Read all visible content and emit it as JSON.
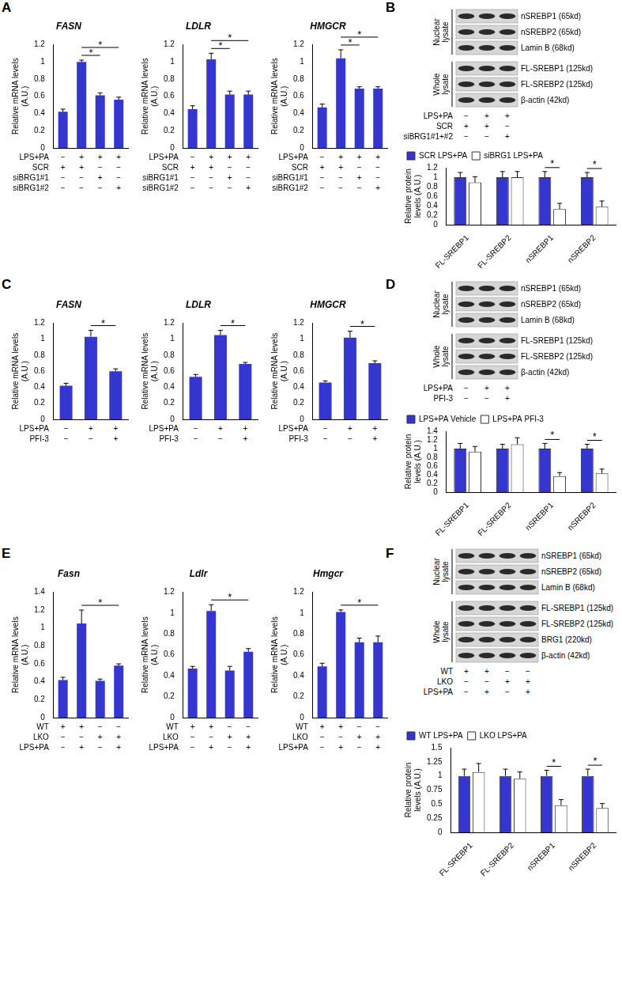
{
  "chart_data": [
    {
      "panel": "A",
      "type": "bar",
      "title": "FASN",
      "y_label": [
        "Relative mRNA levels",
        "(A.U.)"
      ],
      "categories": [
        null,
        null,
        null,
        null
      ],
      "values": [
        0.42,
        1.0,
        0.61,
        0.56
      ],
      "errors": [
        0.03,
        0.02,
        0.03,
        0.03
      ],
      "color": "#3535d0",
      "ylim": [
        0,
        1.2
      ],
      "yticks": [
        0,
        0.2,
        0.4,
        0.6,
        0.8,
        1,
        1.2
      ],
      "grid": false,
      "conditions": [
        {
          "name": "LPS+PA",
          "signs": [
            "−",
            "+",
            "+",
            "+"
          ]
        },
        {
          "name": "SCR",
          "signs": [
            "+",
            "+",
            "−",
            "−"
          ]
        },
        {
          "name": "siBRG1#1",
          "signs": [
            "−",
            "−",
            "+",
            "−"
          ]
        },
        {
          "name": "siBRG1#2",
          "signs": [
            "−",
            "−",
            "−",
            "+"
          ]
        }
      ],
      "significance": [
        {
          "from": 1,
          "to": 2,
          "label": "*"
        },
        {
          "from": 1,
          "to": 3,
          "label": "*"
        }
      ]
    },
    {
      "panel": "A",
      "type": "bar",
      "title": "LDLR",
      "y_label": [
        "Relative mRNA levels",
        "(A.U.)"
      ],
      "categories": [
        null,
        null,
        null,
        null
      ],
      "values": [
        0.45,
        1.03,
        0.62,
        0.62
      ],
      "errors": [
        0.04,
        0.07,
        0.04,
        0.04
      ],
      "color": "#3535d0",
      "ylim": [
        0,
        1.2
      ],
      "yticks": [
        0,
        0.2,
        0.4,
        0.6,
        0.8,
        1,
        1.2
      ],
      "grid": false,
      "conditions": [
        {
          "name": "LPS+PA",
          "signs": [
            "−",
            "+",
            "+",
            "+"
          ]
        },
        {
          "name": "SCR",
          "signs": [
            "+",
            "+",
            "−",
            "−"
          ]
        },
        {
          "name": "siBRG1#1",
          "signs": [
            "−",
            "−",
            "+",
            "−"
          ]
        },
        {
          "name": "siBRG1#2",
          "signs": [
            "−",
            "−",
            "−",
            "+"
          ]
        }
      ],
      "significance": [
        {
          "from": 1,
          "to": 2,
          "label": "*"
        },
        {
          "from": 1,
          "to": 3,
          "label": "*"
        }
      ]
    },
    {
      "panel": "A",
      "type": "bar",
      "title": "HMGCR",
      "y_label": [
        "Relative mRNA levels",
        "(A.U.)"
      ],
      "categories": [
        null,
        null,
        null,
        null
      ],
      "values": [
        0.47,
        1.04,
        0.69,
        0.69
      ],
      "errors": [
        0.04,
        0.1,
        0.02,
        0.02
      ],
      "color": "#3535d0",
      "ylim": [
        0,
        1.2
      ],
      "yticks": [
        0,
        0.2,
        0.4,
        0.6,
        0.8,
        1,
        1.2
      ],
      "grid": false,
      "conditions": [
        {
          "name": "LPS+PA",
          "signs": [
            "−",
            "+",
            "+",
            "+"
          ]
        },
        {
          "name": "SCR",
          "signs": [
            "+",
            "+",
            "−",
            "−"
          ]
        },
        {
          "name": "siBRG1#1",
          "signs": [
            "−",
            "−",
            "+",
            "−"
          ]
        },
        {
          "name": "siBRG1#2",
          "signs": [
            "−",
            "−",
            "−",
            "+"
          ]
        }
      ],
      "significance": [
        {
          "from": 1,
          "to": 2,
          "label": "*"
        },
        {
          "from": 1,
          "to": 3,
          "label": "*"
        }
      ]
    },
    {
      "panel": "B",
      "type": "bar",
      "y_label": [
        "Relative protein",
        "levels (A.U.)"
      ],
      "categories": [
        "FL-SREBP1",
        "FL-SREBP2",
        "nSREBP1",
        "nSREBP2"
      ],
      "series": [
        {
          "name": "SCR LPS+PA",
          "color": "#3535d0",
          "values": [
            1,
            1,
            1,
            1
          ],
          "errors": [
            0.1,
            0.12,
            0.12,
            0.1
          ]
        },
        {
          "name": "siBRG1 LPS+PA",
          "color": "#ffffff",
          "values": [
            0.89,
            1.0,
            0.33,
            0.38
          ],
          "errors": [
            0.12,
            0.12,
            0.12,
            0.12
          ]
        }
      ],
      "ylim": [
        0,
        1.2
      ],
      "yticks": [
        0,
        0.2,
        0.4,
        0.6,
        0.8,
        1,
        1.2
      ],
      "grid": false,
      "legend": "top-left",
      "significance": [
        {
          "category": 2,
          "label": "*"
        },
        {
          "category": 3,
          "label": "*"
        }
      ]
    },
    {
      "panel": "C",
      "type": "bar",
      "title": "FASN",
      "y_label": [
        "Relative mRNA levels",
        "(A.U.)"
      ],
      "categories": [
        null,
        null,
        null
      ],
      "values": [
        0.42,
        1.03,
        0.6
      ],
      "errors": [
        0.03,
        0.08,
        0.03
      ],
      "color": "#3535d0",
      "ylim": [
        0,
        1.2
      ],
      "yticks": [
        0,
        0.2,
        0.4,
        0.6,
        0.8,
        1,
        1.2
      ],
      "grid": false,
      "conditions": [
        {
          "name": "LPS+PA",
          "signs": [
            "−",
            "+",
            "+"
          ]
        },
        {
          "name": "PFI-3",
          "signs": [
            "−",
            "−",
            "+"
          ]
        }
      ],
      "significance": [
        {
          "from": 1,
          "to": 2,
          "label": "*"
        }
      ]
    },
    {
      "panel": "C",
      "type": "bar",
      "title": "LDLR",
      "y_label": [
        "Relative mRNA levels",
        "(A.U.)"
      ],
      "categories": [
        null,
        null,
        null
      ],
      "values": [
        0.53,
        1.05,
        0.69
      ],
      "errors": [
        0.03,
        0.06,
        0.02
      ],
      "color": "#3535d0",
      "ylim": [
        0,
        1.2
      ],
      "yticks": [
        0,
        0.2,
        0.4,
        0.6,
        0.8,
        1,
        1.2
      ],
      "grid": false,
      "conditions": [
        {
          "name": "LPS+PA",
          "signs": [
            "−",
            "+",
            "+"
          ]
        },
        {
          "name": "PFI-3",
          "signs": [
            "−",
            "−",
            "+"
          ]
        }
      ],
      "significance": [
        {
          "from": 1,
          "to": 2,
          "label": "*"
        }
      ]
    },
    {
      "panel": "C",
      "type": "bar",
      "title": "HMGCR",
      "y_label": [
        "Relative mRNA levels",
        "(A.U.)"
      ],
      "categories": [
        null,
        null,
        null
      ],
      "values": [
        0.46,
        1.02,
        0.7
      ],
      "errors": [
        0.02,
        0.08,
        0.03
      ],
      "color": "#3535d0",
      "ylim": [
        0,
        1.2
      ],
      "yticks": [
        0,
        0.2,
        0.4,
        0.6,
        0.8,
        1,
        1.2
      ],
      "grid": false,
      "conditions": [
        {
          "name": "LPS+PA",
          "signs": [
            "−",
            "+",
            "+"
          ]
        },
        {
          "name": "PFI-3",
          "signs": [
            "−",
            "−",
            "+"
          ]
        }
      ],
      "significance": [
        {
          "from": 1,
          "to": 2,
          "label": "*"
        }
      ]
    },
    {
      "panel": "D",
      "type": "bar",
      "y_label": [
        "Relative protein",
        "levels (A.U.)"
      ],
      "categories": [
        "FL-SREBP1",
        "FL-SREBP2",
        "nSREBP1",
        "nSREBP2"
      ],
      "series": [
        {
          "name": "LPS+PA Vehicle",
          "color": "#3535d0",
          "values": [
            1,
            1,
            1,
            1
          ],
          "errors": [
            0.12,
            0.1,
            0.12,
            0.1
          ]
        },
        {
          "name": "LPS+PA PFI-3",
          "color": "#ffffff",
          "values": [
            0.93,
            1.1,
            0.37,
            0.43
          ],
          "errors": [
            0.12,
            0.15,
            0.08,
            0.1
          ]
        }
      ],
      "ylim": [
        0,
        1.4
      ],
      "yticks": [
        0,
        0.2,
        0.4,
        0.6,
        0.8,
        1,
        1.2,
        1.4
      ],
      "grid": false,
      "legend": "top-left",
      "significance": [
        {
          "category": 2,
          "label": "*"
        },
        {
          "category": 3,
          "label": "*"
        }
      ]
    },
    {
      "panel": "E",
      "type": "bar",
      "title": "Fasn",
      "y_label": [
        "Relative mRNA levels",
        "(A.U.)"
      ],
      "categories": [
        null,
        null,
        null,
        null
      ],
      "values": [
        0.42,
        1.05,
        0.41,
        0.58
      ],
      "errors": [
        0.03,
        0.15,
        0.02,
        0.02
      ],
      "color": "#3535d0",
      "ylim": [
        0,
        1.4
      ],
      "yticks": [
        0,
        0.2,
        0.4,
        0.6,
        0.8,
        1,
        1.2,
        1.4
      ],
      "grid": false,
      "conditions": [
        {
          "name": "WT",
          "signs": [
            "+",
            "+",
            "−",
            "−"
          ]
        },
        {
          "name": "LKO",
          "signs": [
            "−",
            "−",
            "+",
            "+"
          ]
        },
        {
          "name": "LPS+PA",
          "signs": [
            "−",
            "+",
            "−",
            "+"
          ]
        }
      ],
      "significance": [
        {
          "from": 1,
          "to": 3,
          "label": "*"
        }
      ]
    },
    {
      "panel": "E",
      "type": "bar",
      "title": "Ldlr",
      "y_label": [
        "Relative mRNA levels",
        "(A.U.)"
      ],
      "categories": [
        null,
        null,
        null,
        null
      ],
      "values": [
        0.47,
        1.02,
        0.45,
        0.63
      ],
      "errors": [
        0.02,
        0.06,
        0.04,
        0.03
      ],
      "color": "#3535d0",
      "ylim": [
        0,
        1.2
      ],
      "yticks": [
        0,
        0.2,
        0.4,
        0.6,
        0.8,
        1,
        1.2
      ],
      "grid": false,
      "conditions": [
        {
          "name": "WT",
          "signs": [
            "+",
            "+",
            "−",
            "−"
          ]
        },
        {
          "name": "LKO",
          "signs": [
            "−",
            "−",
            "+",
            "+"
          ]
        },
        {
          "name": "LPS+PA",
          "signs": [
            "−",
            "+",
            "−",
            "+"
          ]
        }
      ],
      "significance": [
        {
          "from": 1,
          "to": 3,
          "label": "*"
        }
      ]
    },
    {
      "panel": "E",
      "type": "bar",
      "title": "Hmgcr",
      "y_label": [
        "Relative mRNA levels",
        "(A.U.)"
      ],
      "categories": [
        null,
        null,
        null,
        null
      ],
      "values": [
        0.49,
        1.01,
        0.72,
        0.72
      ],
      "errors": [
        0.03,
        0.02,
        0.04,
        0.06
      ],
      "color": "#3535d0",
      "ylim": [
        0,
        1.2
      ],
      "yticks": [
        0,
        0.2,
        0.4,
        0.6,
        0.8,
        1,
        1.2
      ],
      "grid": false,
      "conditions": [
        {
          "name": "WT",
          "signs": [
            "+",
            "+",
            "−",
            "−"
          ]
        },
        {
          "name": "LKO",
          "signs": [
            "−",
            "−",
            "+",
            "+"
          ]
        },
        {
          "name": "LPS+PA",
          "signs": [
            "−",
            "+",
            "−",
            "+"
          ]
        }
      ],
      "significance": [
        {
          "from": 1,
          "to": 3,
          "label": "*"
        }
      ]
    },
    {
      "panel": "F",
      "type": "bar",
      "y_label": [
        "Relative protein",
        "levels (A.U.)"
      ],
      "categories": [
        "FL-SREBP1",
        "FL-SREBP2",
        "nSREBP1",
        "nSREBP2"
      ],
      "series": [
        {
          "name": "WT LPS+PA",
          "color": "#3535d0",
          "values": [
            1,
            1,
            1,
            1
          ],
          "errors": [
            0.12,
            0.12,
            0.1,
            0.12
          ]
        },
        {
          "name": "LKO LPS+PA",
          "color": "#ffffff",
          "values": [
            1.07,
            0.95,
            0.48,
            0.43
          ],
          "errors": [
            0.15,
            0.12,
            0.1,
            0.08
          ]
        }
      ],
      "ylim": [
        0,
        1.5
      ],
      "yticks": [
        0,
        0.25,
        0.5,
        0.75,
        1,
        1.25,
        1.5
      ],
      "grid": false,
      "legend": "top-left",
      "significance": [
        {
          "category": 2,
          "label": "*"
        },
        {
          "category": 3,
          "label": "*"
        }
      ]
    }
  ],
  "blots": [
    {
      "panel": "B",
      "groups": [
        {
          "name": [
            "Nuclear",
            "lysate"
          ],
          "rows": [
            "nSREBP1 (65kd)",
            "nSREBP2 (65kd)",
            "Lamin B (68kd)"
          ]
        },
        {
          "name": [
            "Whole",
            "lysate"
          ],
          "rows": [
            "FL-SREBP1 (125kd)",
            "FL-SREBP2 (125kd)",
            "β-actin (42kd)"
          ]
        }
      ],
      "conditions": [
        {
          "name": "LPS+PA",
          "signs": [
            "−",
            "+",
            "+"
          ]
        },
        {
          "name": "SCR",
          "signs": [
            "+",
            "+",
            "−"
          ]
        },
        {
          "name": "siBRG1#1+#2",
          "signs": [
            "−",
            "−",
            "+"
          ]
        }
      ]
    },
    {
      "panel": "D",
      "groups": [
        {
          "name": [
            "Nuclear",
            "lysate"
          ],
          "rows": [
            "nSREBP1 (65kd)",
            "nSREBP2 (65kd)",
            "Lamin B (68kd)"
          ]
        },
        {
          "name": [
            "Whole",
            "lysate"
          ],
          "rows": [
            "FL-SREBP1 (125kd)",
            "FL-SREBP2 (125kd)",
            "β-actin (42kd)"
          ]
        }
      ],
      "conditions": [
        {
          "name": "LPS+PA",
          "signs": [
            "−",
            "+",
            "+"
          ]
        },
        {
          "name": "PFI-3",
          "signs": [
            "−",
            "−",
            "+"
          ]
        }
      ]
    },
    {
      "panel": "F",
      "groups": [
        {
          "name": [
            "Nuclear",
            "lysate"
          ],
          "rows": [
            "nSREBP1 (65kd)",
            "nSREBP2 (65kd)",
            "Lamin B (68kd)"
          ]
        },
        {
          "name": [
            "Whole",
            "lysate"
          ],
          "rows": [
            "FL-SREBP1 (125kd)",
            "FL-SREBP2 (125kd)",
            "BRG1 (220kd)",
            "β-actin (42kd)"
          ]
        }
      ],
      "conditions": [
        {
          "name": "WT",
          "signs": [
            "+",
            "+",
            "−",
            "−"
          ]
        },
        {
          "name": "LKO",
          "signs": [
            "−",
            "−",
            "+",
            "+"
          ]
        },
        {
          "name": "LPS+PA",
          "signs": [
            "−",
            "+",
            "−",
            "+"
          ]
        }
      ]
    }
  ]
}
